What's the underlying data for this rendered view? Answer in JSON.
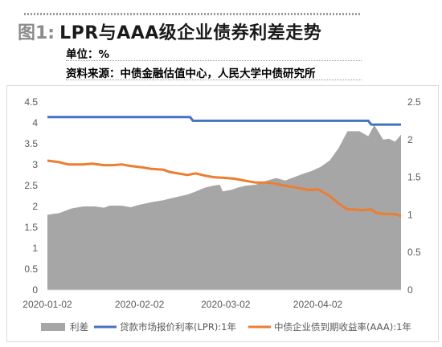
{
  "header": {
    "figure_label": "图1:",
    "title": "LPR与AAA级企业债券利差走势",
    "unit": "单位：%",
    "source": "资料来源：中债金融估值中心，人民大学中债研究所"
  },
  "chart_data": {
    "type": "area+line",
    "title": "LPR与AAA级企业债券利差走势",
    "y_left": {
      "min": 0,
      "max": 4.5,
      "ticks": [
        "0",
        "0.5",
        "1",
        "1.5",
        "2",
        "2.5",
        "3",
        "3.5",
        "4",
        "4.5"
      ]
    },
    "y_right": {
      "min": 0,
      "max": 2.5,
      "ticks": [
        "0",
        "0.5",
        "1",
        "1.5",
        "2",
        "2.5"
      ]
    },
    "x_ticks": [
      "2020-01-02",
      "2020-02-02",
      "2020-03-02",
      "2020-04-02"
    ],
    "x_range": [
      "2020-01-02",
      "2020-04-30"
    ],
    "grid": false,
    "legend_position": "bottom",
    "series": [
      {
        "name": "利差",
        "type": "area",
        "axis": "left",
        "color": "#a6a6a6",
        "points": [
          [
            "2020-01-02",
            1.8
          ],
          [
            "2020-01-06",
            1.84
          ],
          [
            "2020-01-10",
            1.95
          ],
          [
            "2020-01-14",
            2.0
          ],
          [
            "2020-01-18",
            2.0
          ],
          [
            "2020-01-21",
            1.97
          ],
          [
            "2020-01-23",
            2.02
          ],
          [
            "2020-01-27",
            2.02
          ],
          [
            "2020-01-30",
            1.98
          ],
          [
            "2020-02-02",
            2.04
          ],
          [
            "2020-02-06",
            2.1
          ],
          [
            "2020-02-10",
            2.15
          ],
          [
            "2020-02-14",
            2.22
          ],
          [
            "2020-02-18",
            2.28
          ],
          [
            "2020-02-21",
            2.36
          ],
          [
            "2020-02-24",
            2.45
          ],
          [
            "2020-02-27",
            2.5
          ],
          [
            "2020-02-29",
            2.52
          ],
          [
            "2020-03-01",
            2.36
          ],
          [
            "2020-03-04",
            2.4
          ],
          [
            "2020-03-06",
            2.45
          ],
          [
            "2020-03-09",
            2.5
          ],
          [
            "2020-03-12",
            2.52
          ],
          [
            "2020-03-16",
            2.62
          ],
          [
            "2020-03-19",
            2.68
          ],
          [
            "2020-03-22",
            2.62
          ],
          [
            "2020-03-25",
            2.7
          ],
          [
            "2020-03-28",
            2.78
          ],
          [
            "2020-03-31",
            2.85
          ],
          [
            "2020-04-03",
            2.95
          ],
          [
            "2020-04-06",
            3.1
          ],
          [
            "2020-04-09",
            3.4
          ],
          [
            "2020-04-12",
            3.8
          ],
          [
            "2020-04-16",
            3.8
          ],
          [
            "2020-04-19",
            3.68
          ],
          [
            "2020-04-21",
            3.95
          ],
          [
            "2020-04-24",
            3.6
          ],
          [
            "2020-04-26",
            3.62
          ],
          [
            "2020-04-28",
            3.55
          ],
          [
            "2020-04-30",
            3.72
          ]
        ]
      },
      {
        "name": "贷款市场报价利率(LPR):1年",
        "type": "line",
        "axis": "right",
        "color": "#4472c4",
        "points": [
          [
            "2020-01-02",
            2.3
          ],
          [
            "2020-02-19",
            2.3
          ],
          [
            "2020-02-20",
            2.25
          ],
          [
            "2020-04-19",
            2.25
          ],
          [
            "2020-04-20",
            2.2
          ],
          [
            "2020-04-30",
            2.2
          ]
        ]
      },
      {
        "name": "中债企业债到期收益率(AAA):1年",
        "type": "line",
        "axis": "right",
        "color": "#ed7d31",
        "points": [
          [
            "2020-01-02",
            1.72
          ],
          [
            "2020-01-06",
            1.7
          ],
          [
            "2020-01-09",
            1.67
          ],
          [
            "2020-01-14",
            1.67
          ],
          [
            "2020-01-17",
            1.68
          ],
          [
            "2020-01-21",
            1.66
          ],
          [
            "2020-01-24",
            1.66
          ],
          [
            "2020-01-27",
            1.67
          ],
          [
            "2020-01-30",
            1.65
          ],
          [
            "2020-02-03",
            1.63
          ],
          [
            "2020-02-06",
            1.61
          ],
          [
            "2020-02-10",
            1.6
          ],
          [
            "2020-02-12",
            1.57
          ],
          [
            "2020-02-15",
            1.55
          ],
          [
            "2020-02-18",
            1.53
          ],
          [
            "2020-02-21",
            1.55
          ],
          [
            "2020-02-24",
            1.52
          ],
          [
            "2020-02-27",
            1.5
          ],
          [
            "2020-03-02",
            1.49
          ],
          [
            "2020-03-05",
            1.48
          ],
          [
            "2020-03-09",
            1.45
          ],
          [
            "2020-03-12",
            1.43
          ],
          [
            "2020-03-16",
            1.43
          ],
          [
            "2020-03-19",
            1.41
          ],
          [
            "2020-03-23",
            1.38
          ],
          [
            "2020-03-26",
            1.36
          ],
          [
            "2020-03-30",
            1.33
          ],
          [
            "2020-04-02",
            1.34
          ],
          [
            "2020-04-06",
            1.25
          ],
          [
            "2020-04-09",
            1.15
          ],
          [
            "2020-04-12",
            1.07
          ],
          [
            "2020-04-15",
            1.07
          ],
          [
            "2020-04-17",
            1.06
          ],
          [
            "2020-04-20",
            1.07
          ],
          [
            "2020-04-22",
            1.02
          ],
          [
            "2020-04-25",
            1.01
          ],
          [
            "2020-04-28",
            1.01
          ],
          [
            "2020-04-30",
            0.98
          ]
        ]
      }
    ]
  }
}
